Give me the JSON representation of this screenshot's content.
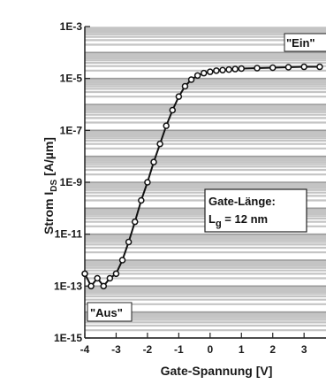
{
  "chart_data": {
    "type": "line",
    "xlabel": "Gate-Spannung [V]",
    "ylabel": "Strom I_DS [A/µm]",
    "ylabel_parts": {
      "pre": "Strom I",
      "sub": "DS",
      "post": " [A/µm]"
    },
    "y_scale": "log",
    "xlim": [
      -4,
      3.7
    ],
    "ylim_exp": [
      -15,
      -3
    ],
    "x_ticks": [
      "-4",
      "-3",
      "-2",
      "-1",
      "0",
      "1",
      "2",
      "3"
    ],
    "y_ticks": [
      "1E-3",
      "1E-5",
      "1E-7",
      "1E-9",
      "1E-11",
      "1E-13",
      "1E-15"
    ],
    "grid": "horizontal",
    "series": [
      {
        "x": [
          -4.0,
          -3.8,
          -3.6,
          -3.4,
          -3.2,
          -3.0,
          -2.8,
          -2.6,
          -2.4,
          -2.2,
          -2.0,
          -1.8,
          -1.6,
          -1.4,
          -1.2,
          -1.0,
          -0.8,
          -0.6,
          -0.4,
          -0.2,
          0.0,
          0.2,
          0.4,
          0.6,
          0.8,
          1.0,
          1.5,
          2.0,
          2.5,
          3.0,
          3.5
        ],
        "y": [
          3e-13,
          1e-13,
          2e-13,
          1e-13,
          2e-13,
          3e-13,
          1e-12,
          5e-12,
          3e-11,
          2e-10,
          1e-09,
          6e-09,
          3e-08,
          1.5e-07,
          6e-07,
          2e-06,
          5e-06,
          9e-06,
          1.3e-05,
          1.6e-05,
          1.8e-05,
          2e-05,
          2.1e-05,
          2.2e-05,
          2.3e-05,
          2.4e-05,
          2.5e-05,
          2.6e-05,
          2.7e-05,
          2.8e-05,
          2.8e-05
        ]
      }
    ],
    "annotations": {
      "on_label": "\"Ein\"",
      "off_label": "\"Aus\"",
      "gate_length_title": "Gate-Länge:",
      "gate_length_value_pre": "L",
      "gate_length_value_sub": "g",
      "gate_length_value_post": " = 12 nm"
    }
  }
}
